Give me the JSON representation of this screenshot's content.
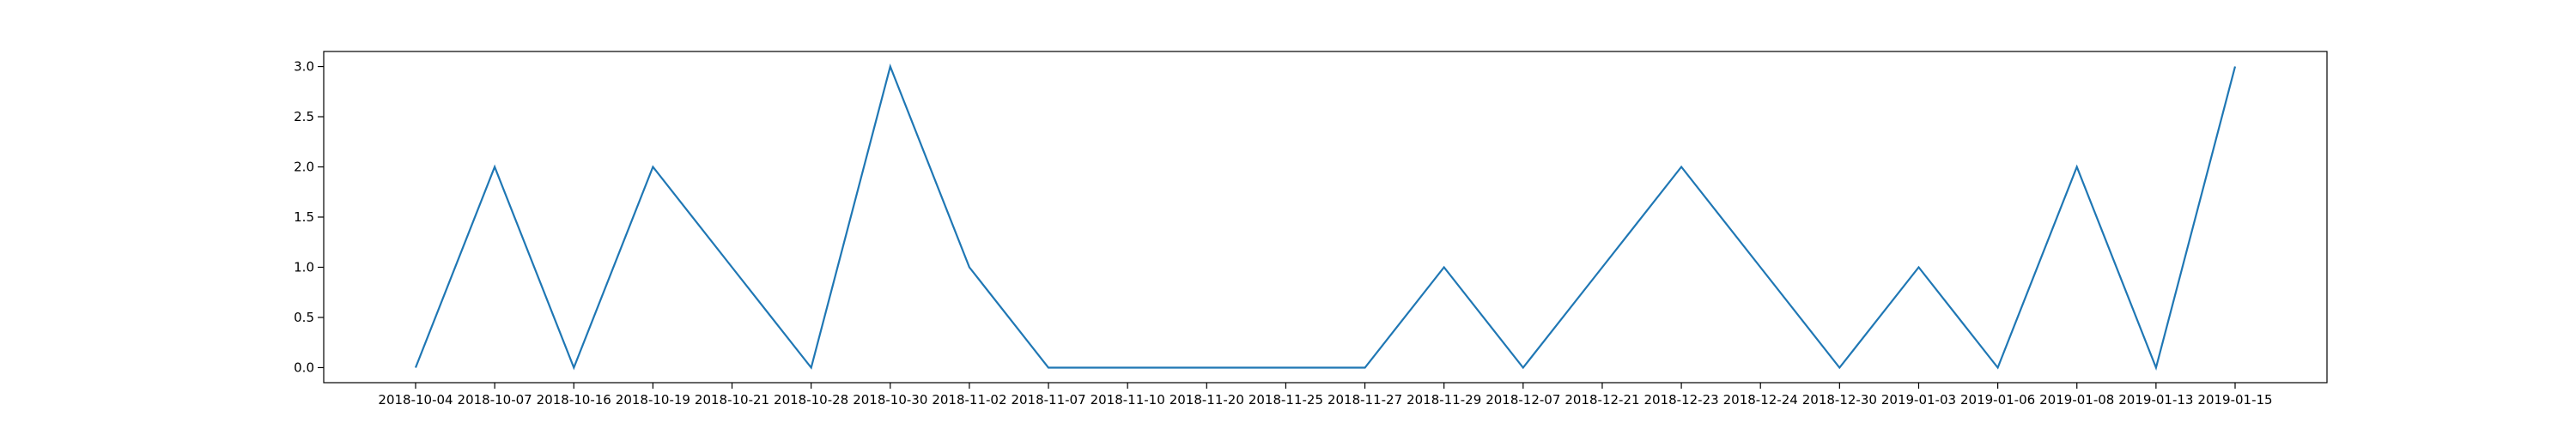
{
  "chart_data": {
    "type": "line",
    "title": "",
    "xlabel": "",
    "ylabel": "",
    "categories": [
      "2018-10-04",
      "2018-10-07",
      "2018-10-16",
      "2018-10-19",
      "2018-10-21",
      "2018-10-28",
      "2018-10-30",
      "2018-11-02",
      "2018-11-07",
      "2018-11-10",
      "2018-11-20",
      "2018-11-25",
      "2018-11-27",
      "2018-11-29",
      "2018-12-07",
      "2018-12-21",
      "2018-12-23",
      "2018-12-24",
      "2018-12-30",
      "2019-01-03",
      "2019-01-06",
      "2019-01-08",
      "2019-01-13",
      "2019-01-15"
    ],
    "series": [
      {
        "values": [
          0,
          2,
          0,
          2,
          1,
          0,
          3,
          1,
          0,
          0,
          0,
          0,
          0,
          1,
          0,
          1,
          2,
          1,
          0,
          1,
          0,
          2,
          0,
          3
        ],
        "color": "#1f77b4"
      }
    ],
    "yticks": [
      "0.0",
      "0.5",
      "1.0",
      "1.5",
      "2.0",
      "2.5",
      "3.0"
    ],
    "ylim": [
      -0.15,
      3.15
    ],
    "grid": false,
    "legend": "none"
  }
}
